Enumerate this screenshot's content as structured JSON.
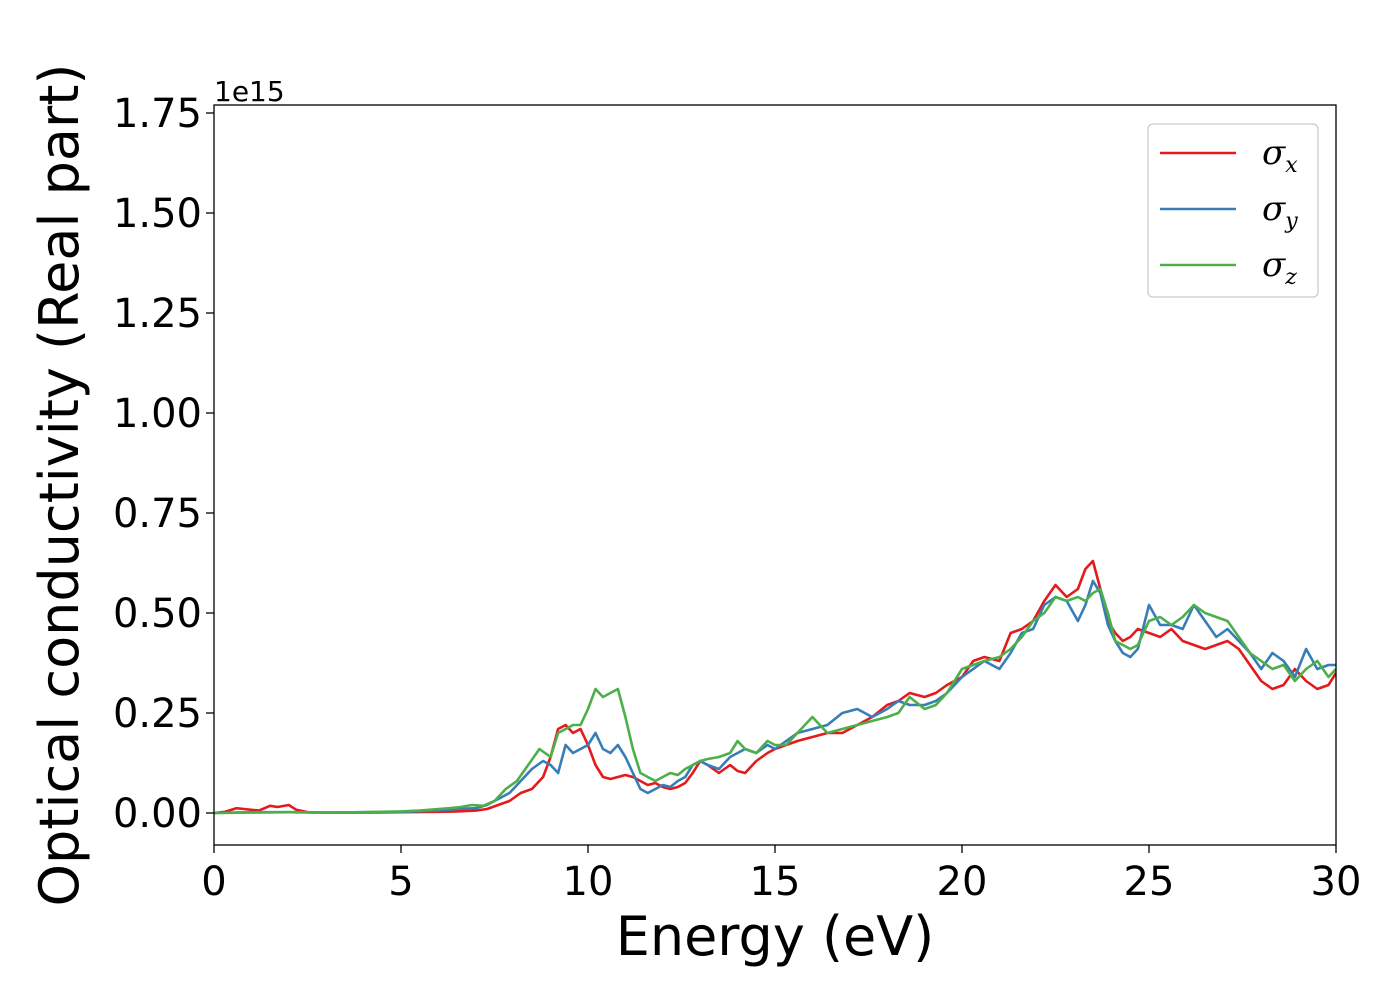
{
  "chart_data": {
    "type": "line",
    "xlabel": "Energy (eV)",
    "ylabel": "Optical conductivity (Real part)",
    "y_offset_label": "1e15",
    "xlim": [
      0,
      30
    ],
    "ylim": [
      -0.08,
      1.77
    ],
    "x_ticks": [
      0,
      5,
      10,
      15,
      20,
      25,
      30
    ],
    "x_tick_labels": [
      "0",
      "5",
      "10",
      "15",
      "20",
      "25",
      "30"
    ],
    "y_ticks": [
      0.0,
      0.25,
      0.5,
      0.75,
      1.0,
      1.25,
      1.5,
      1.75
    ],
    "y_tick_labels": [
      "0.00",
      "0.25",
      "0.50",
      "0.75",
      "1.00",
      "1.25",
      "1.50",
      "1.75"
    ],
    "grid": false,
    "legend_position": "top-right",
    "series": [
      {
        "name": "σx",
        "legend_symbol": "σ",
        "legend_sub": "x",
        "color": "#e41a1c",
        "x": [
          0,
          0.3,
          0.6,
          0.8,
          1.0,
          1.2,
          1.5,
          1.7,
          2.0,
          2.2,
          2.5,
          3,
          4,
          5,
          6,
          6.5,
          7,
          7.3,
          7.6,
          7.9,
          8.2,
          8.5,
          8.8,
          9.0,
          9.2,
          9.4,
          9.6,
          9.8,
          10.0,
          10.2,
          10.4,
          10.6,
          10.8,
          11.0,
          11.2,
          11.4,
          11.6,
          11.8,
          12.0,
          12.2,
          12.4,
          12.6,
          12.8,
          13.0,
          13.2,
          13.5,
          13.8,
          14.0,
          14.2,
          14.5,
          14.8,
          15.0,
          15.3,
          15.6,
          16.0,
          16.4,
          16.8,
          17.2,
          17.6,
          18.0,
          18.3,
          18.6,
          19.0,
          19.3,
          19.6,
          20.0,
          20.3,
          20.6,
          21.0,
          21.3,
          21.6,
          21.9,
          22.2,
          22.5,
          22.8,
          23.1,
          23.3,
          23.5,
          23.7,
          23.9,
          24.1,
          24.3,
          24.5,
          24.7,
          25.0,
          25.3,
          25.6,
          25.9,
          26.2,
          26.5,
          26.8,
          27.1,
          27.4,
          27.7,
          28.0,
          28.3,
          28.6,
          28.9,
          29.2,
          29.5,
          29.8,
          30.0
        ],
        "y": [
          0.0,
          0.003,
          0.012,
          0.01,
          0.008,
          0.006,
          0.018,
          0.015,
          0.02,
          0.008,
          0.002,
          0.001,
          0.001,
          0.002,
          0.003,
          0.004,
          0.006,
          0.01,
          0.02,
          0.03,
          0.05,
          0.06,
          0.09,
          0.14,
          0.21,
          0.22,
          0.2,
          0.21,
          0.17,
          0.12,
          0.09,
          0.085,
          0.09,
          0.095,
          0.09,
          0.08,
          0.07,
          0.075,
          0.065,
          0.06,
          0.065,
          0.075,
          0.1,
          0.13,
          0.12,
          0.1,
          0.12,
          0.105,
          0.1,
          0.13,
          0.15,
          0.16,
          0.17,
          0.18,
          0.19,
          0.2,
          0.2,
          0.22,
          0.24,
          0.27,
          0.28,
          0.3,
          0.29,
          0.3,
          0.32,
          0.34,
          0.38,
          0.39,
          0.38,
          0.45,
          0.46,
          0.48,
          0.53,
          0.57,
          0.54,
          0.56,
          0.61,
          0.63,
          0.56,
          0.48,
          0.45,
          0.43,
          0.44,
          0.46,
          0.45,
          0.44,
          0.46,
          0.43,
          0.42,
          0.41,
          0.42,
          0.43,
          0.41,
          0.37,
          0.33,
          0.31,
          0.32,
          0.36,
          0.33,
          0.31,
          0.32,
          0.35
        ]
      },
      {
        "name": "σy",
        "legend_symbol": "σ",
        "legend_sub": "y",
        "color": "#377eb8",
        "x": [
          0,
          1,
          2,
          3,
          4,
          5,
          6,
          6.5,
          7,
          7.3,
          7.6,
          7.9,
          8.2,
          8.5,
          8.8,
          9.0,
          9.2,
          9.4,
          9.6,
          9.8,
          10.0,
          10.2,
          10.4,
          10.6,
          10.8,
          11.0,
          11.2,
          11.4,
          11.6,
          11.8,
          12.0,
          12.2,
          12.4,
          12.6,
          12.8,
          13.0,
          13.2,
          13.5,
          13.8,
          14.0,
          14.2,
          14.5,
          14.8,
          15.0,
          15.3,
          15.6,
          16.0,
          16.4,
          16.8,
          17.2,
          17.6,
          18.0,
          18.3,
          18.6,
          19.0,
          19.3,
          19.6,
          20.0,
          20.3,
          20.6,
          21.0,
          21.3,
          21.6,
          21.9,
          22.2,
          22.5,
          22.8,
          23.1,
          23.3,
          23.5,
          23.7,
          23.9,
          24.1,
          24.3,
          24.5,
          24.7,
          25.0,
          25.3,
          25.6,
          25.9,
          26.2,
          26.5,
          26.8,
          27.1,
          27.4,
          27.7,
          28.0,
          28.3,
          28.6,
          28.9,
          29.2,
          29.5,
          29.8,
          30.0
        ],
        "y": [
          0.0,
          0.002,
          0.002,
          0.001,
          0.002,
          0.003,
          0.006,
          0.01,
          0.012,
          0.02,
          0.035,
          0.05,
          0.08,
          0.11,
          0.13,
          0.12,
          0.1,
          0.17,
          0.15,
          0.16,
          0.17,
          0.2,
          0.16,
          0.15,
          0.17,
          0.14,
          0.1,
          0.06,
          0.05,
          0.06,
          0.07,
          0.065,
          0.08,
          0.09,
          0.12,
          0.13,
          0.12,
          0.11,
          0.14,
          0.15,
          0.16,
          0.15,
          0.17,
          0.16,
          0.18,
          0.2,
          0.21,
          0.22,
          0.25,
          0.26,
          0.24,
          0.26,
          0.28,
          0.27,
          0.27,
          0.28,
          0.3,
          0.34,
          0.36,
          0.38,
          0.36,
          0.4,
          0.45,
          0.46,
          0.52,
          0.54,
          0.53,
          0.48,
          0.52,
          0.58,
          0.55,
          0.47,
          0.43,
          0.4,
          0.39,
          0.41,
          0.52,
          0.47,
          0.47,
          0.46,
          0.52,
          0.48,
          0.44,
          0.46,
          0.43,
          0.4,
          0.36,
          0.4,
          0.38,
          0.34,
          0.41,
          0.36,
          0.37,
          0.37
        ]
      },
      {
        "name": "σz",
        "legend_symbol": "σ",
        "legend_sub": "z",
        "color": "#4daf4a",
        "x": [
          0,
          1,
          2,
          3,
          4,
          5,
          5.5,
          6,
          6.3,
          6.6,
          6.9,
          7.2,
          7.5,
          7.8,
          8.1,
          8.4,
          8.7,
          9.0,
          9.2,
          9.4,
          9.6,
          9.8,
          10.0,
          10.2,
          10.4,
          10.6,
          10.8,
          11.0,
          11.2,
          11.4,
          11.6,
          11.8,
          12.0,
          12.2,
          12.4,
          12.6,
          12.8,
          13.0,
          13.2,
          13.5,
          13.8,
          14.0,
          14.2,
          14.5,
          14.8,
          15.0,
          15.3,
          15.6,
          16.0,
          16.4,
          16.8,
          17.2,
          17.6,
          18.0,
          18.3,
          18.6,
          19.0,
          19.3,
          19.6,
          20.0,
          20.3,
          20.6,
          21.0,
          21.3,
          21.6,
          21.9,
          22.2,
          22.5,
          22.8,
          23.1,
          23.3,
          23.5,
          23.7,
          23.9,
          24.1,
          24.3,
          24.5,
          24.7,
          25.0,
          25.3,
          25.6,
          25.9,
          26.2,
          26.5,
          26.8,
          27.1,
          27.4,
          27.7,
          28.0,
          28.3,
          28.6,
          28.9,
          29.2,
          29.5,
          29.8,
          30.0
        ],
        "y": [
          0.0,
          0.001,
          0.002,
          0.001,
          0.002,
          0.004,
          0.006,
          0.01,
          0.012,
          0.015,
          0.02,
          0.018,
          0.03,
          0.06,
          0.08,
          0.12,
          0.16,
          0.14,
          0.2,
          0.21,
          0.22,
          0.22,
          0.26,
          0.31,
          0.29,
          0.3,
          0.31,
          0.24,
          0.16,
          0.1,
          0.09,
          0.08,
          0.09,
          0.1,
          0.095,
          0.11,
          0.12,
          0.13,
          0.135,
          0.14,
          0.15,
          0.18,
          0.16,
          0.15,
          0.18,
          0.17,
          0.17,
          0.2,
          0.24,
          0.2,
          0.21,
          0.22,
          0.23,
          0.24,
          0.25,
          0.29,
          0.26,
          0.27,
          0.3,
          0.36,
          0.37,
          0.38,
          0.39,
          0.41,
          0.44,
          0.48,
          0.5,
          0.54,
          0.53,
          0.54,
          0.53,
          0.55,
          0.56,
          0.5,
          0.43,
          0.42,
          0.41,
          0.42,
          0.48,
          0.49,
          0.47,
          0.49,
          0.52,
          0.5,
          0.49,
          0.48,
          0.44,
          0.4,
          0.38,
          0.36,
          0.37,
          0.33,
          0.36,
          0.38,
          0.34,
          0.36
        ]
      }
    ]
  }
}
